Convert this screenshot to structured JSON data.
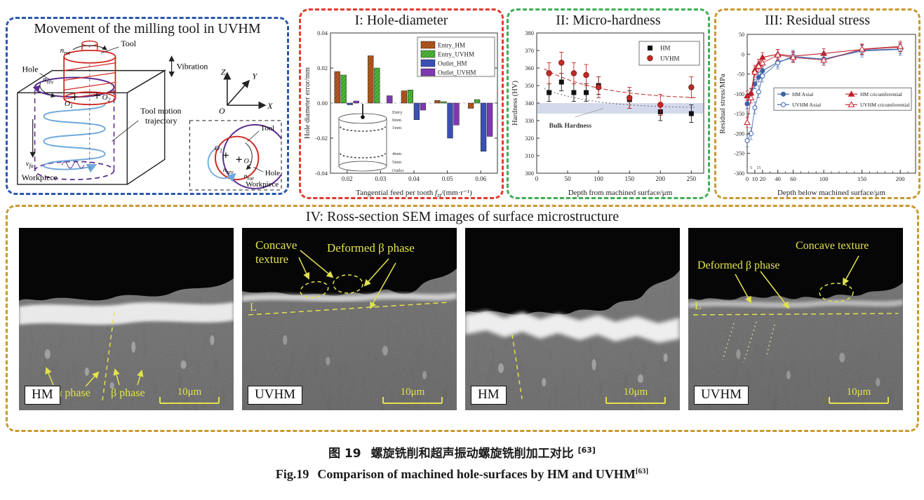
{
  "colors": {
    "panel_blue": "#2b57ae",
    "panel_red": "#e23b2e",
    "panel_green": "#3fae54",
    "panel_gold": "#c9992f",
    "tool_red": "#cf2720",
    "spiral_blue": "#6fa8dc",
    "hole_purple": "#5b2d8e",
    "annotation_yellow": "#e2e24e"
  },
  "panels": {
    "movement": {
      "title": "Movement of the milling tool in UVHM",
      "labels": {
        "tool": "Tool",
        "hole": "Hole",
        "workpiece": "Workpiece",
        "vibration": "Vibration",
        "trajectory_line1": "Tool motion",
        "trajectory_line2": "trajectory",
        "n_base": "n",
        "rot_sub": "rot",
        "rev_sub": "rev",
        "v_base": "v",
        "v_sub": "fa",
        "o_base": "O",
        "o1_sub": "1",
        "o2_sub": "2",
        "axis_z": "Z",
        "axis_y": "Y",
        "axis_x": "X",
        "axis_o": "O",
        "inset": {
          "tool": "Tool",
          "hole": "Hole",
          "workpiece": "Workpiece"
        }
      }
    },
    "hole_diameter": {
      "title": "I: Hole-diameter"
    },
    "hardness": {
      "title": "II: Micro-hardness"
    },
    "residual": {
      "title": "III: Residual stress"
    },
    "sem": {
      "title": "IV: Ross-section SEM images of surface microstructure",
      "images": [
        {
          "badge": "HM",
          "scale": "10μm",
          "ann": {
            "alpha": "α phase",
            "beta": "β phase"
          }
        },
        {
          "badge": "UVHM",
          "scale": "10μm",
          "ann": {
            "concave1": "Concave",
            "concave2": "texture",
            "deformed": "Deformed β phase",
            "line": "L"
          }
        },
        {
          "badge": "HM",
          "scale": "10μm",
          "ann": {}
        },
        {
          "badge": "UVHM",
          "scale": "10μm",
          "ann": {
            "deformed": "Deformed β phase",
            "concave": "Concave texture",
            "line": "L"
          }
        }
      ]
    }
  },
  "chart_data": [
    {
      "type": "bar",
      "title": "I: Hole-diameter",
      "categories": [
        "0.02",
        "0.03",
        "0.04",
        "0.05",
        "0.06"
      ],
      "series": [
        {
          "name": "Entry_HM",
          "color": "#b4571e",
          "hatch": true,
          "values": [
            0.018,
            0.027,
            0.007,
            0.0015,
            -0.003
          ]
        },
        {
          "name": "Entry_UVHM",
          "color": "#4db53a",
          "hatch": true,
          "values": [
            0.016,
            0.02,
            0.0075,
            0.0008,
            0.002
          ]
        },
        {
          "name": "Outlet_HM",
          "color": "#3a50b5",
          "hatch": false,
          "values": [
            -0.001,
            0.0,
            -0.0095,
            -0.02,
            -0.0275
          ]
        },
        {
          "name": "Outlet_UVHM",
          "color": "#8038b0",
          "hatch": false,
          "values": [
            0.0012,
            0.0042,
            -0.004,
            -0.0125,
            -0.019
          ]
        }
      ],
      "xlabel_pre": "Tangential feed per tooth ",
      "xlabel_var": "f",
      "xlabel_varsub": "zt",
      "xlabel_post": "/(mm·r⁻¹)",
      "ylabel": "Hole diameter error/mm",
      "ylim": [
        -0.04,
        0.04
      ],
      "yticks": [
        0.04,
        0.02,
        0.0,
        -0.02,
        -0.04
      ],
      "inset_labels": [
        "Entry",
        "0mm",
        "1mm",
        "4mm",
        "5mm",
        "Outlet"
      ]
    },
    {
      "type": "scatter",
      "title": "II: Micro-hardness",
      "x": [
        20,
        40,
        60,
        80,
        100,
        150,
        200,
        250
      ],
      "series": [
        {
          "name": "HM",
          "color": "#1a1a1a",
          "marker": "square",
          "err": 5,
          "values": [
            346,
            352,
            346,
            346,
            350,
            342,
            335,
            334
          ],
          "trend": {
            "c": 337,
            "a": 13,
            "tau": 80
          }
        },
        {
          "name": "UVHM",
          "color": "#bf2b26",
          "marker": "circle",
          "err": 6,
          "values": [
            357,
            363,
            357,
            356,
            349,
            343,
            339,
            349
          ],
          "trend": {
            "c": 342,
            "a": 20,
            "tau": 90
          }
        }
      ],
      "xlabel": "Depth from machined surface/μm",
      "ylabel": "Hardness (HV)",
      "xlim": [
        0,
        270
      ],
      "ylim": [
        300,
        380
      ],
      "xticks": [
        0,
        50,
        100,
        150,
        200,
        250
      ],
      "yticks": [
        300,
        310,
        320,
        330,
        340,
        350,
        360,
        370,
        380
      ],
      "band": {
        "label": "Bulk Hardness",
        "y1": 334,
        "y2": 340,
        "color": "#a9b5da"
      }
    },
    {
      "type": "line",
      "title": "III: Residual stress",
      "x": [
        0,
        5,
        10,
        15,
        20,
        40,
        60,
        100,
        150,
        200
      ],
      "series": [
        {
          "name": "HM  Axial",
          "color": "#3a62a8",
          "marker": "circle",
          "open": false,
          "err": 12,
          "values": [
            -125,
            -100,
            -75,
            -58,
            -42,
            -20,
            -8,
            -12,
            10,
            13
          ]
        },
        {
          "name": "HM cricumferential",
          "color": "#bf1f28",
          "marker": "triangle",
          "open": false,
          "err": 12,
          "values": [
            -105,
            -98,
            -40,
            -25,
            -8,
            0,
            -5,
            2,
            12,
            18
          ]
        },
        {
          "name": "UVHM  Axial",
          "color": "#3a62a8",
          "marker": "circle",
          "open": true,
          "err": 15,
          "values": [
            -218,
            -200,
            -135,
            -95,
            -55,
            -22,
            -5,
            -13,
            8,
            12
          ]
        },
        {
          "name": "UVHM cricumferential",
          "color": "#bf1f28",
          "marker": "triangle",
          "open": true,
          "err": 13,
          "values": [
            -172,
            -110,
            -45,
            -30,
            -22,
            -2,
            -8,
            -15,
            13,
            20
          ]
        }
      ],
      "xlabel": "Depth below machined surface/μm",
      "ylabel": "Residual stress/MPa",
      "xlim": [
        0,
        220
      ],
      "ylim": [
        -300,
        50
      ],
      "xticks": [
        0,
        10,
        20,
        40,
        60,
        100,
        150,
        200
      ],
      "minor_xlabels": [
        {
          "x": 5,
          "label": "5"
        },
        {
          "x": 15,
          "label": "15"
        }
      ],
      "yticks": [
        50,
        0,
        -50,
        -100,
        -150,
        -200,
        -250,
        -300
      ]
    }
  ],
  "caption": {
    "cn_prefix": "图 19",
    "cn_text": "螺旋铣削和超声振动螺旋铣削加工对比",
    "cn_ref": "[63]",
    "en_prefix": "Fig.19",
    "en_text": "Comparison of machined hole-surfaces by HM and UVHM",
    "en_ref": "[63]"
  }
}
